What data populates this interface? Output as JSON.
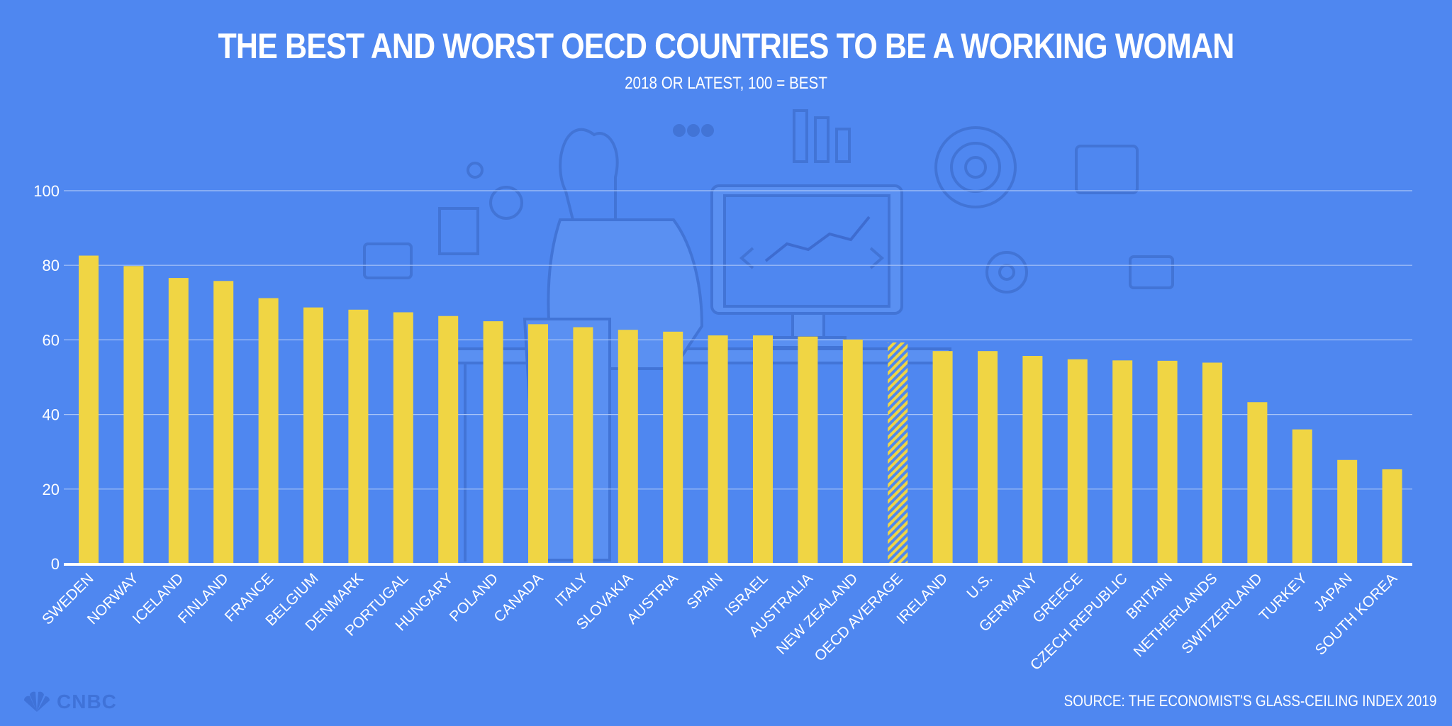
{
  "title": "THE BEST AND WORST OECD COUNTRIES TO BE A WORKING WOMAN",
  "subtitle": "2018 OR LATEST, 100 = BEST",
  "source": "SOURCE: THE ECONOMIST'S GLASS-CEILING INDEX 2019",
  "logo": {
    "text": "CNBC",
    "icon": "peacock-icon"
  },
  "colors": {
    "background": "#4f87f0",
    "bar": "#f0d544",
    "gridline": "#a9c4f7",
    "axis": "#ffffff",
    "illustration": "#4274d6"
  },
  "chart_data": {
    "type": "bar",
    "categories": [
      "SWEDEN",
      "NORWAY",
      "ICELAND",
      "FINLAND",
      "FRANCE",
      "BELGIUM",
      "DENMARK",
      "PORTUGAL",
      "HUNGARY",
      "POLAND",
      "CANADA",
      "ITALY",
      "SLOVAKIA",
      "AUSTRIA",
      "SPAIN",
      "ISRAEL",
      "AUSTRALIA",
      "NEW ZEALAND",
      "OECD AVERAGE",
      "IRELAND",
      "U.S.",
      "GERMANY",
      "GREECE",
      "CZECH REPUBLIC",
      "BRITAIN",
      "NETHERLANDS",
      "SWITZERLAND",
      "TURKEY",
      "JAPAN",
      "SOUTH KOREA"
    ],
    "values": [
      82.6,
      79.8,
      76.6,
      75.8,
      71.2,
      68.7,
      68.1,
      67.4,
      66.4,
      65.0,
      64.2,
      63.4,
      62.7,
      62.2,
      61.2,
      61.2,
      60.9,
      60.1,
      59.3,
      57.0,
      57.0,
      55.7,
      54.8,
      54.5,
      54.4,
      53.9,
      43.3,
      36.0,
      27.8,
      25.3
    ],
    "highlight": "OECD AVERAGE",
    "ylim": [
      0,
      100
    ],
    "yticks": [
      0,
      20,
      40,
      60,
      80,
      100
    ],
    "grid": true,
    "xlabel": "",
    "ylabel": ""
  }
}
